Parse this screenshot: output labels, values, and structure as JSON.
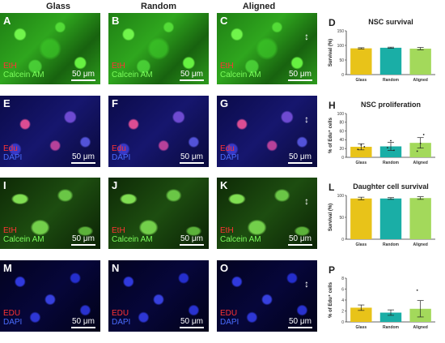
{
  "columns": [
    "Glass",
    "Random",
    "Aligned"
  ],
  "panels": [
    {
      "letter": "A",
      "stains": [
        {
          "text": "EtH",
          "color": "red"
        },
        {
          "text": "Calcein AM",
          "color": "green"
        }
      ],
      "scale": "50 μm",
      "arrow": false
    },
    {
      "letter": "B",
      "stains": [
        {
          "text": "EtH",
          "color": "red"
        },
        {
          "text": "Calcein AM",
          "color": "green"
        }
      ],
      "scale": "50 μm",
      "arrow": false
    },
    {
      "letter": "C",
      "stains": [
        {
          "text": "EtH",
          "color": "red"
        },
        {
          "text": "Calcein AM",
          "color": "green"
        }
      ],
      "scale": "50 μm",
      "arrow": true
    },
    {
      "letter": "E",
      "stains": [
        {
          "text": "Edu",
          "color": "red"
        },
        {
          "text": "DAPI",
          "color": "blue"
        }
      ],
      "scale": "50 μm",
      "arrow": false
    },
    {
      "letter": "F",
      "stains": [
        {
          "text": "Edu",
          "color": "red"
        },
        {
          "text": "DAPI",
          "color": "blue"
        }
      ],
      "scale": "50 μm",
      "arrow": false
    },
    {
      "letter": "G",
      "stains": [
        {
          "text": "Edu",
          "color": "red"
        },
        {
          "text": "DAPI",
          "color": "blue"
        }
      ],
      "scale": "50 μm",
      "arrow": true
    },
    {
      "letter": "I",
      "stains": [
        {
          "text": "EtH",
          "color": "red"
        },
        {
          "text": "Calcein AM",
          "color": "green"
        }
      ],
      "scale": "50 μm",
      "arrow": false
    },
    {
      "letter": "J",
      "stains": [
        {
          "text": "EtH",
          "color": "red"
        },
        {
          "text": "Calcein AM",
          "color": "green"
        }
      ],
      "scale": "50 μm",
      "arrow": false
    },
    {
      "letter": "K",
      "stains": [
        {
          "text": "EtH",
          "color": "red"
        },
        {
          "text": "Calcein AM",
          "color": "green"
        }
      ],
      "scale": "50 μm",
      "arrow": true
    },
    {
      "letter": "M",
      "stains": [
        {
          "text": "EDU",
          "color": "red"
        },
        {
          "text": "DAPI",
          "color": "blue"
        }
      ],
      "scale": "50 μm",
      "arrow": false
    },
    {
      "letter": "N",
      "stains": [
        {
          "text": "EDU",
          "color": "red"
        },
        {
          "text": "DAPI",
          "color": "blue"
        }
      ],
      "scale": "50 μm",
      "arrow": false
    },
    {
      "letter": "O",
      "stains": [
        {
          "text": "EDU",
          "color": "red"
        },
        {
          "text": "DAPI",
          "color": "blue"
        }
      ],
      "scale": "50 μm",
      "arrow": true
    }
  ],
  "chart_data": [
    {
      "letter": "D",
      "type": "bar",
      "title": "NSC survival",
      "ylabel": "Survival (%)",
      "categories": [
        "Glass",
        "Random",
        "Aligned"
      ],
      "values": [
        90,
        92,
        89
      ],
      "errors": [
        2,
        2,
        4
      ],
      "ylim": [
        0,
        150
      ],
      "yticks": [
        0,
        50,
        100,
        150
      ],
      "points": [],
      "colors": [
        "#e8c319",
        "#1aaea6",
        "#a3d95b"
      ]
    },
    {
      "letter": "H",
      "type": "bar",
      "title": "NSC proliferation",
      "ylabel": "% of Edu⁺ cells",
      "categories": [
        "Glass",
        "Random",
        "Aligned"
      ],
      "values": [
        24,
        25,
        33
      ],
      "errors": [
        7,
        9,
        12
      ],
      "ylim": [
        0,
        100
      ],
      "yticks": [
        0,
        20,
        40,
        60,
        80,
        100
      ],
      "points": [
        [
          18,
          28,
          24
        ],
        [
          22,
          38,
          16
        ],
        [
          14,
          32,
          52
        ]
      ],
      "colors": [
        "#e8c319",
        "#1aaea6",
        "#a3d95b"
      ]
    },
    {
      "letter": "L",
      "type": "bar",
      "title": "Daughter cell survival",
      "ylabel": "Survival (%)",
      "categories": [
        "Glass",
        "Random",
        "Aligned"
      ],
      "values": [
        93,
        93,
        94
      ],
      "errors": [
        3,
        2,
        3
      ],
      "ylim": [
        0,
        100
      ],
      "yticks": [
        0,
        50,
        100
      ],
      "points": [],
      "colors": [
        "#e8c319",
        "#1aaea6",
        "#a3d95b"
      ]
    },
    {
      "letter": "P",
      "type": "bar",
      "title": "",
      "ylabel": "% of Edu⁺ cells",
      "categories": [
        "Glass",
        "Random",
        "Aligned"
      ],
      "values": [
        2.6,
        1.7,
        2.4
      ],
      "errors": [
        0.5,
        0.5,
        1.5
      ],
      "ylim": [
        0,
        8
      ],
      "yticks": [
        0,
        2,
        4,
        6,
        8
      ],
      "points": [
        [],
        [],
        [
          5.8
        ]
      ],
      "colors": [
        "#e8c319",
        "#1aaea6",
        "#a3d95b"
      ]
    }
  ]
}
